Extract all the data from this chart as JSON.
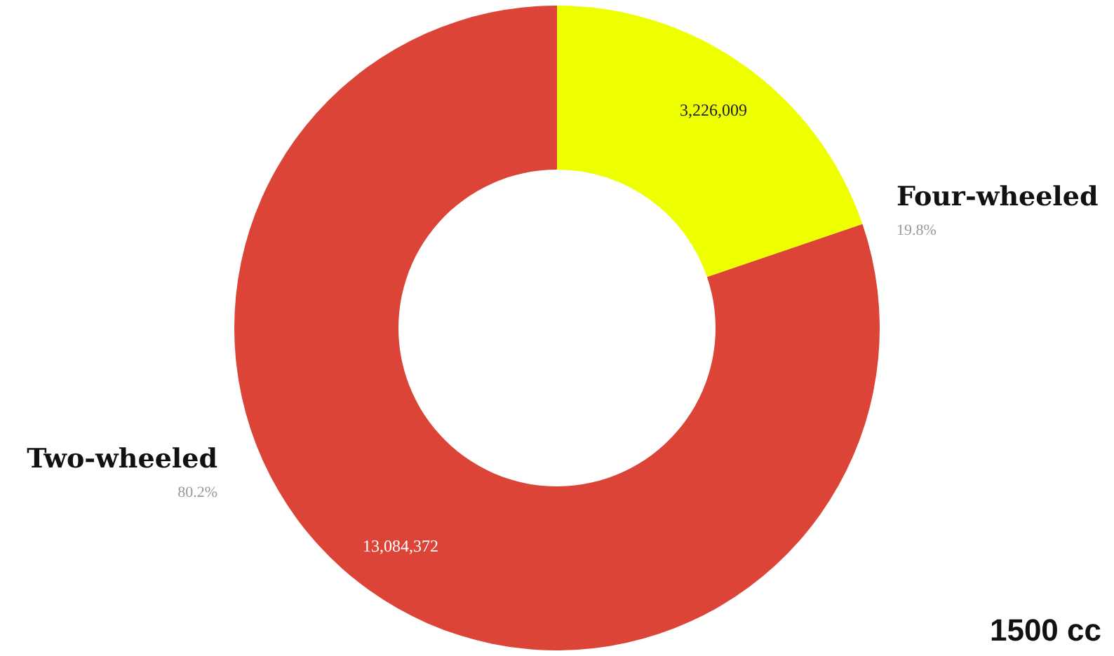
{
  "chart_data": {
    "type": "donut",
    "categories": [
      "Four-wheeled",
      "Two-wheeled"
    ],
    "values": [
      3226009,
      13084372
    ],
    "value_labels": [
      "3,226,009",
      "13,084,372"
    ],
    "colors": [
      "#eeff00",
      "#dc4437"
    ],
    "annotations": [
      "19.8%",
      "80.2%",
      "1500 cc"
    ]
  }
}
